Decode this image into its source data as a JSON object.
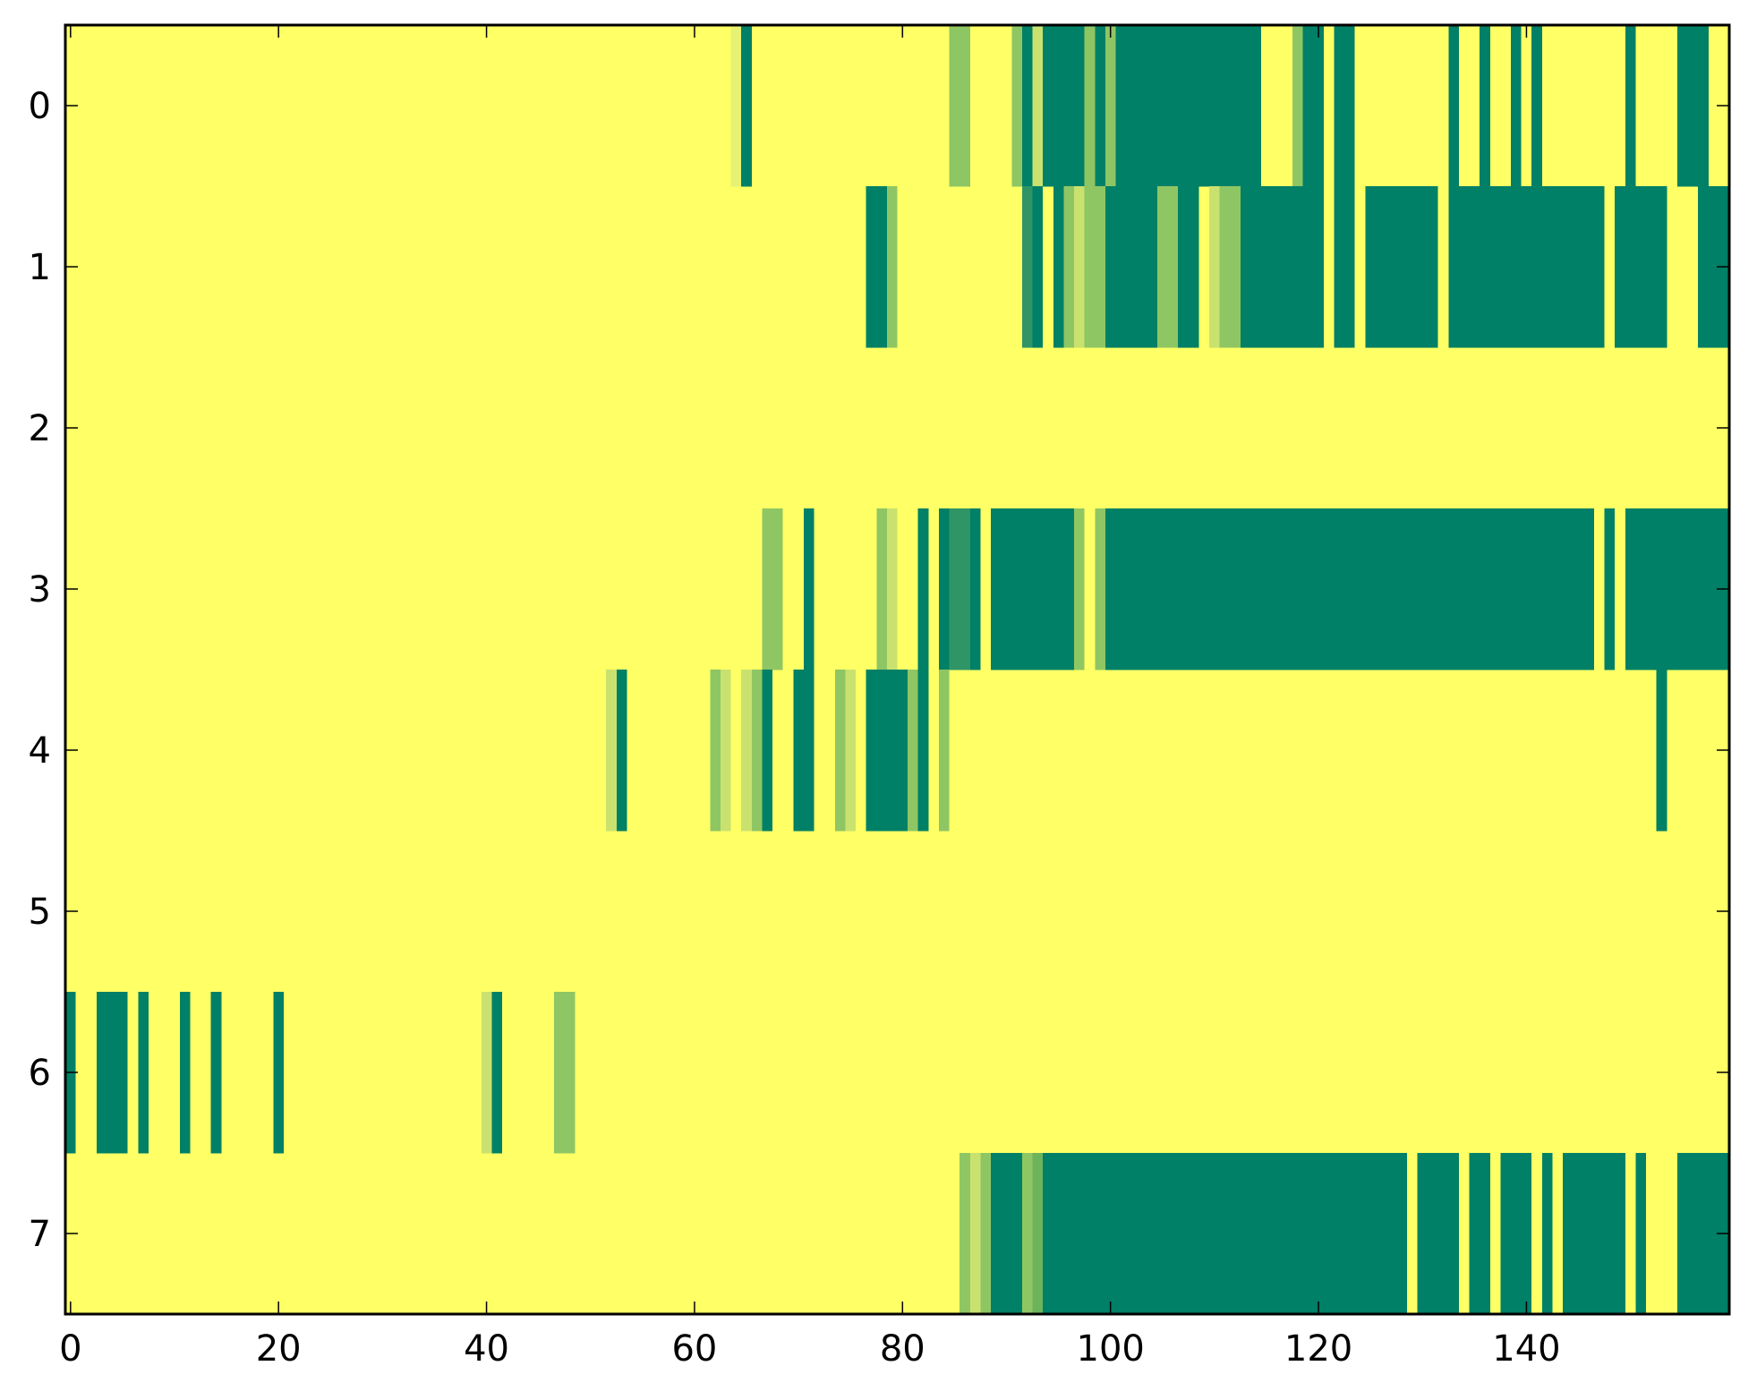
{
  "chart_data": {
    "type": "heatmap",
    "title": "",
    "xlabel": "",
    "ylabel": "",
    "x_ticks": [
      0,
      20,
      40,
      60,
      80,
      100,
      120,
      140
    ],
    "y_ticks": [
      0,
      1,
      2,
      3,
      4,
      5,
      6,
      7
    ],
    "x_range": [
      -0.5,
      159.5
    ],
    "rows": 8,
    "columns": 160,
    "colormap": "summer_r",
    "value_range": [
      0,
      1
    ],
    "colors": {
      "low": "#ffff66",
      "high": "#008066",
      "levels": [
        "#ffff66",
        "#e6f271",
        "#c9e26f",
        "#a8d36a",
        "#8fc664",
        "#6cb45c",
        "#2f9566",
        "#008066"
      ]
    },
    "cells_note": "",
    "segments": [
      [
        [
          64,
          65,
          0.2
        ],
        [
          65,
          66,
          1
        ],
        [
          85,
          87,
          0.5
        ],
        [
          91,
          92,
          0.6
        ],
        [
          92,
          93,
          1
        ],
        [
          93,
          94,
          0.3
        ],
        [
          94,
          98,
          1
        ],
        [
          98,
          99,
          0.5
        ],
        [
          99,
          100,
          1
        ],
        [
          100,
          101,
          0.5
        ],
        [
          101,
          115,
          1
        ],
        [
          118,
          119,
          0.6
        ],
        [
          119,
          121,
          1
        ],
        [
          122,
          124,
          1
        ],
        [
          133,
          134,
          1
        ],
        [
          136,
          137,
          1
        ],
        [
          139,
          140,
          1
        ],
        [
          141,
          142,
          1
        ],
        [
          150,
          151,
          1
        ],
        [
          155,
          158,
          1
        ]
      ],
      [
        [
          77,
          79,
          1
        ],
        [
          79,
          80,
          0.6
        ],
        [
          92,
          93,
          0.8
        ],
        [
          93,
          94,
          1
        ],
        [
          95,
          96,
          1
        ],
        [
          96,
          97,
          0.5
        ],
        [
          97,
          98,
          0.3
        ],
        [
          98,
          100,
          0.6
        ],
        [
          100,
          105,
          1
        ],
        [
          105,
          107,
          0.6
        ],
        [
          107,
          109,
          1
        ],
        [
          110,
          111,
          0.3
        ],
        [
          111,
          113,
          0.6
        ],
        [
          113,
          121,
          1
        ],
        [
          122,
          124,
          1
        ],
        [
          125,
          132,
          1
        ],
        [
          133,
          141,
          1
        ],
        [
          141,
          148,
          1
        ],
        [
          149,
          154,
          1
        ],
        [
          157,
          160,
          1
        ]
      ],
      [],
      [
        [
          67,
          69,
          0.6
        ],
        [
          71,
          72,
          1
        ],
        [
          78,
          79,
          0.6
        ],
        [
          79,
          80,
          0.3
        ],
        [
          82,
          83,
          1
        ],
        [
          84,
          85,
          1
        ],
        [
          85,
          87,
          0.8
        ],
        [
          87,
          88,
          1
        ],
        [
          89,
          97,
          1
        ],
        [
          97,
          98,
          0.6
        ],
        [
          99,
          100,
          0.6
        ],
        [
          100,
          147,
          1
        ],
        [
          148,
          149,
          1
        ],
        [
          150,
          160,
          1
        ]
      ],
      [
        [
          52,
          53,
          0.3
        ],
        [
          53,
          54,
          1
        ],
        [
          62,
          63,
          0.6
        ],
        [
          63,
          64,
          0.3
        ],
        [
          65,
          66,
          0.3
        ],
        [
          66,
          67,
          0.6
        ],
        [
          67,
          68,
          1
        ],
        [
          70,
          72,
          1
        ],
        [
          74,
          75,
          0.6
        ],
        [
          75,
          76,
          0.3
        ],
        [
          77,
          81,
          1
        ],
        [
          81,
          82,
          0.5
        ],
        [
          82,
          83,
          1
        ],
        [
          84,
          85,
          0.6
        ],
        [
          153,
          154,
          1
        ]
      ],
      [],
      [
        [
          0,
          1,
          1
        ],
        [
          3,
          6,
          1
        ],
        [
          7,
          8,
          1
        ],
        [
          11,
          12,
          1
        ],
        [
          14,
          15,
          1
        ],
        [
          20,
          21,
          1
        ],
        [
          40,
          41,
          0.3
        ],
        [
          41,
          42,
          1
        ],
        [
          47,
          48,
          0.6
        ],
        [
          48,
          49,
          0.6
        ]
      ],
      [
        [
          86,
          87,
          0.5
        ],
        [
          87,
          88,
          0.3
        ],
        [
          88,
          89,
          0.6
        ],
        [
          89,
          92,
          1
        ],
        [
          92,
          93,
          0.5
        ],
        [
          93,
          94,
          0.7
        ],
        [
          94,
          129,
          1
        ],
        [
          130,
          134,
          1
        ],
        [
          135,
          137,
          1
        ],
        [
          138,
          141,
          1
        ],
        [
          142,
          143,
          1
        ],
        [
          144,
          150,
          1
        ],
        [
          151,
          152,
          1
        ],
        [
          155,
          160,
          1
        ]
      ]
    ]
  }
}
